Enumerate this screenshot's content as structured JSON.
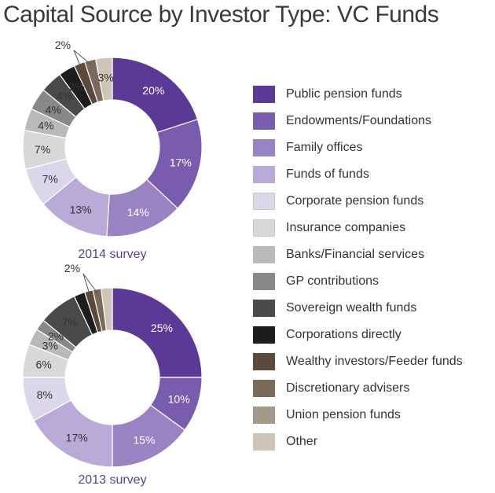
{
  "title": "Capital Source by Investor Type: VC Funds",
  "chart_data": {
    "type": "donut",
    "legend_position": "right",
    "categories": [
      "Public pension funds",
      "Endowments/Foundations",
      "Family offices",
      "Funds of funds",
      "Corporate pension funds",
      "Insurance companies",
      "Banks/Financial services",
      "GP contributions",
      "Sovereign wealth funds",
      "Corporations directly",
      "Wealthy investors/Feeder funds",
      "Discretionary advisers",
      "Union pension funds",
      "Other"
    ],
    "colors": [
      "#5b3a97",
      "#7a5caf",
      "#9a83c3",
      "#baaad8",
      "#dcd6ea",
      "#d8d8d8",
      "#b9b9bc",
      "#88888b",
      "#4a4a4d",
      "#1d1d1f",
      "#5b4a3b",
      "#7a6a5a",
      "#a69888",
      "#cfc4b8"
    ],
    "series": [
      {
        "name": "2014 survey",
        "values": [
          20,
          17,
          14,
          13,
          7,
          7,
          4,
          4,
          4,
          3,
          2,
          2,
          0,
          3
        ],
        "labels": [
          "20%",
          "17%",
          "14%",
          "13%",
          "7%",
          "7%",
          "4%",
          "4%",
          "4%",
          "3%",
          "",
          "",
          "",
          "3%"
        ],
        "callout": "2%"
      },
      {
        "name": "2013 survey",
        "values": [
          25,
          10,
          15,
          17,
          8,
          6,
          3,
          2,
          7,
          2,
          1.5,
          1.5,
          0,
          2
        ],
        "labels": [
          "25%",
          "10%",
          "15%",
          "17%",
          "8%",
          "6%",
          "3%",
          "2%",
          "7%",
          "",
          "",
          "",
          "",
          ""
        ],
        "callout": "2%"
      }
    ]
  }
}
